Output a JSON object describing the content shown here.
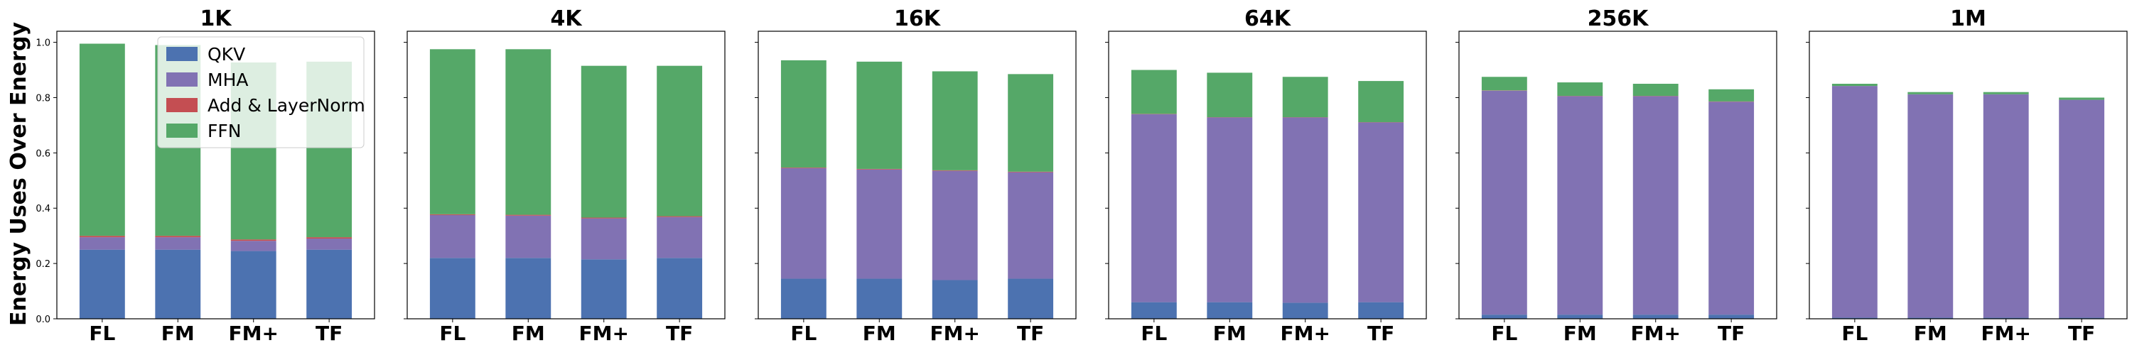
{
  "ylabel": "Energy Uses Over Energy",
  "colors": {
    "QKV": "#4c72b0",
    "MHA": "#8172b3",
    "Add & LayerNorm": "#c44e52",
    "FFN": "#55a868"
  },
  "legend": {
    "placement": "upper-right of first panel",
    "entries": [
      "QKV",
      "MHA",
      "Add & LayerNorm",
      "FFN"
    ]
  },
  "chart_data": [
    {
      "type": "bar",
      "stacked": true,
      "title": "1K",
      "categories": [
        "FL",
        "FM",
        "FM+",
        "TF"
      ],
      "ylim": [
        0,
        1.04
      ],
      "yticks": [
        "0.0",
        "0.2",
        "0.4",
        "0.6",
        "0.8",
        "1.0"
      ],
      "series": [
        {
          "name": "QKV",
          "values": [
            0.25,
            0.25,
            0.245,
            0.25
          ]
        },
        {
          "name": "MHA",
          "values": [
            0.045,
            0.045,
            0.037,
            0.04
          ]
        },
        {
          "name": "Add & LayerNorm",
          "values": [
            0.005,
            0.005,
            0.005,
            0.005
          ]
        },
        {
          "name": "FFN",
          "values": [
            0.695,
            0.69,
            0.64,
            0.635
          ]
        }
      ]
    },
    {
      "type": "bar",
      "stacked": true,
      "title": "4K",
      "categories": [
        "FL",
        "FM",
        "FM+",
        "TF"
      ],
      "ylim": [
        0,
        1.04
      ],
      "yticks": [
        "0.0",
        "0.2",
        "0.4",
        "0.6",
        "0.8",
        "1.0"
      ],
      "series": [
        {
          "name": "QKV",
          "values": [
            0.22,
            0.22,
            0.215,
            0.22
          ]
        },
        {
          "name": "MHA",
          "values": [
            0.155,
            0.153,
            0.148,
            0.148
          ]
        },
        {
          "name": "Add & LayerNorm",
          "values": [
            0.003,
            0.003,
            0.003,
            0.003
          ]
        },
        {
          "name": "FFN",
          "values": [
            0.597,
            0.599,
            0.549,
            0.544
          ]
        }
      ]
    },
    {
      "type": "bar",
      "stacked": true,
      "title": "16K",
      "categories": [
        "FL",
        "FM",
        "FM+",
        "TF"
      ],
      "ylim": [
        0,
        1.04
      ],
      "yticks": [
        "0.0",
        "0.2",
        "0.4",
        "0.6",
        "0.8",
        "1.0"
      ],
      "series": [
        {
          "name": "QKV",
          "values": [
            0.145,
            0.145,
            0.14,
            0.145
          ]
        },
        {
          "name": "MHA",
          "values": [
            0.4,
            0.395,
            0.395,
            0.385
          ]
        },
        {
          "name": "Add & LayerNorm",
          "values": [
            0.002,
            0.002,
            0.002,
            0.002
          ]
        },
        {
          "name": "FFN",
          "values": [
            0.388,
            0.388,
            0.358,
            0.353
          ]
        }
      ]
    },
    {
      "type": "bar",
      "stacked": true,
      "title": "64K",
      "categories": [
        "FL",
        "FM",
        "FM+",
        "TF"
      ],
      "ylim": [
        0,
        1.04
      ],
      "yticks": [
        "0.0",
        "0.2",
        "0.4",
        "0.6",
        "0.8",
        "1.0"
      ],
      "series": [
        {
          "name": "QKV",
          "values": [
            0.06,
            0.06,
            0.058,
            0.06
          ]
        },
        {
          "name": "MHA",
          "values": [
            0.68,
            0.668,
            0.67,
            0.65
          ]
        },
        {
          "name": "Add & LayerNorm",
          "values": [
            0.001,
            0.001,
            0.001,
            0.001
          ]
        },
        {
          "name": "FFN",
          "values": [
            0.159,
            0.161,
            0.146,
            0.149
          ]
        }
      ]
    },
    {
      "type": "bar",
      "stacked": true,
      "title": "256K",
      "categories": [
        "FL",
        "FM",
        "FM+",
        "TF"
      ],
      "ylim": [
        0,
        1.04
      ],
      "yticks": [
        "0.0",
        "0.2",
        "0.4",
        "0.6",
        "0.8",
        "1.0"
      ],
      "series": [
        {
          "name": "QKV",
          "values": [
            0.015,
            0.015,
            0.015,
            0.015
          ]
        },
        {
          "name": "MHA",
          "values": [
            0.81,
            0.79,
            0.79,
            0.77
          ]
        },
        {
          "name": "Add & LayerNorm",
          "values": [
            0.001,
            0.001,
            0.001,
            0.001
          ]
        },
        {
          "name": "FFN",
          "values": [
            0.049,
            0.049,
            0.044,
            0.044
          ]
        }
      ]
    },
    {
      "type": "bar",
      "stacked": true,
      "title": "1M",
      "categories": [
        "FL",
        "FM",
        "FM+",
        "TF"
      ],
      "ylim": [
        0,
        1.04
      ],
      "yticks": [
        "0.0",
        "0.2",
        "0.4",
        "0.6",
        "0.8",
        "1.0"
      ],
      "series": [
        {
          "name": "QKV",
          "values": [
            0.004,
            0.004,
            0.004,
            0.004
          ]
        },
        {
          "name": "MHA",
          "values": [
            0.838,
            0.808,
            0.808,
            0.788
          ]
        },
        {
          "name": "Add & LayerNorm",
          "values": [
            0.0,
            0.0,
            0.0,
            0.0
          ]
        },
        {
          "name": "FFN",
          "values": [
            0.008,
            0.008,
            0.008,
            0.008
          ]
        }
      ]
    }
  ]
}
